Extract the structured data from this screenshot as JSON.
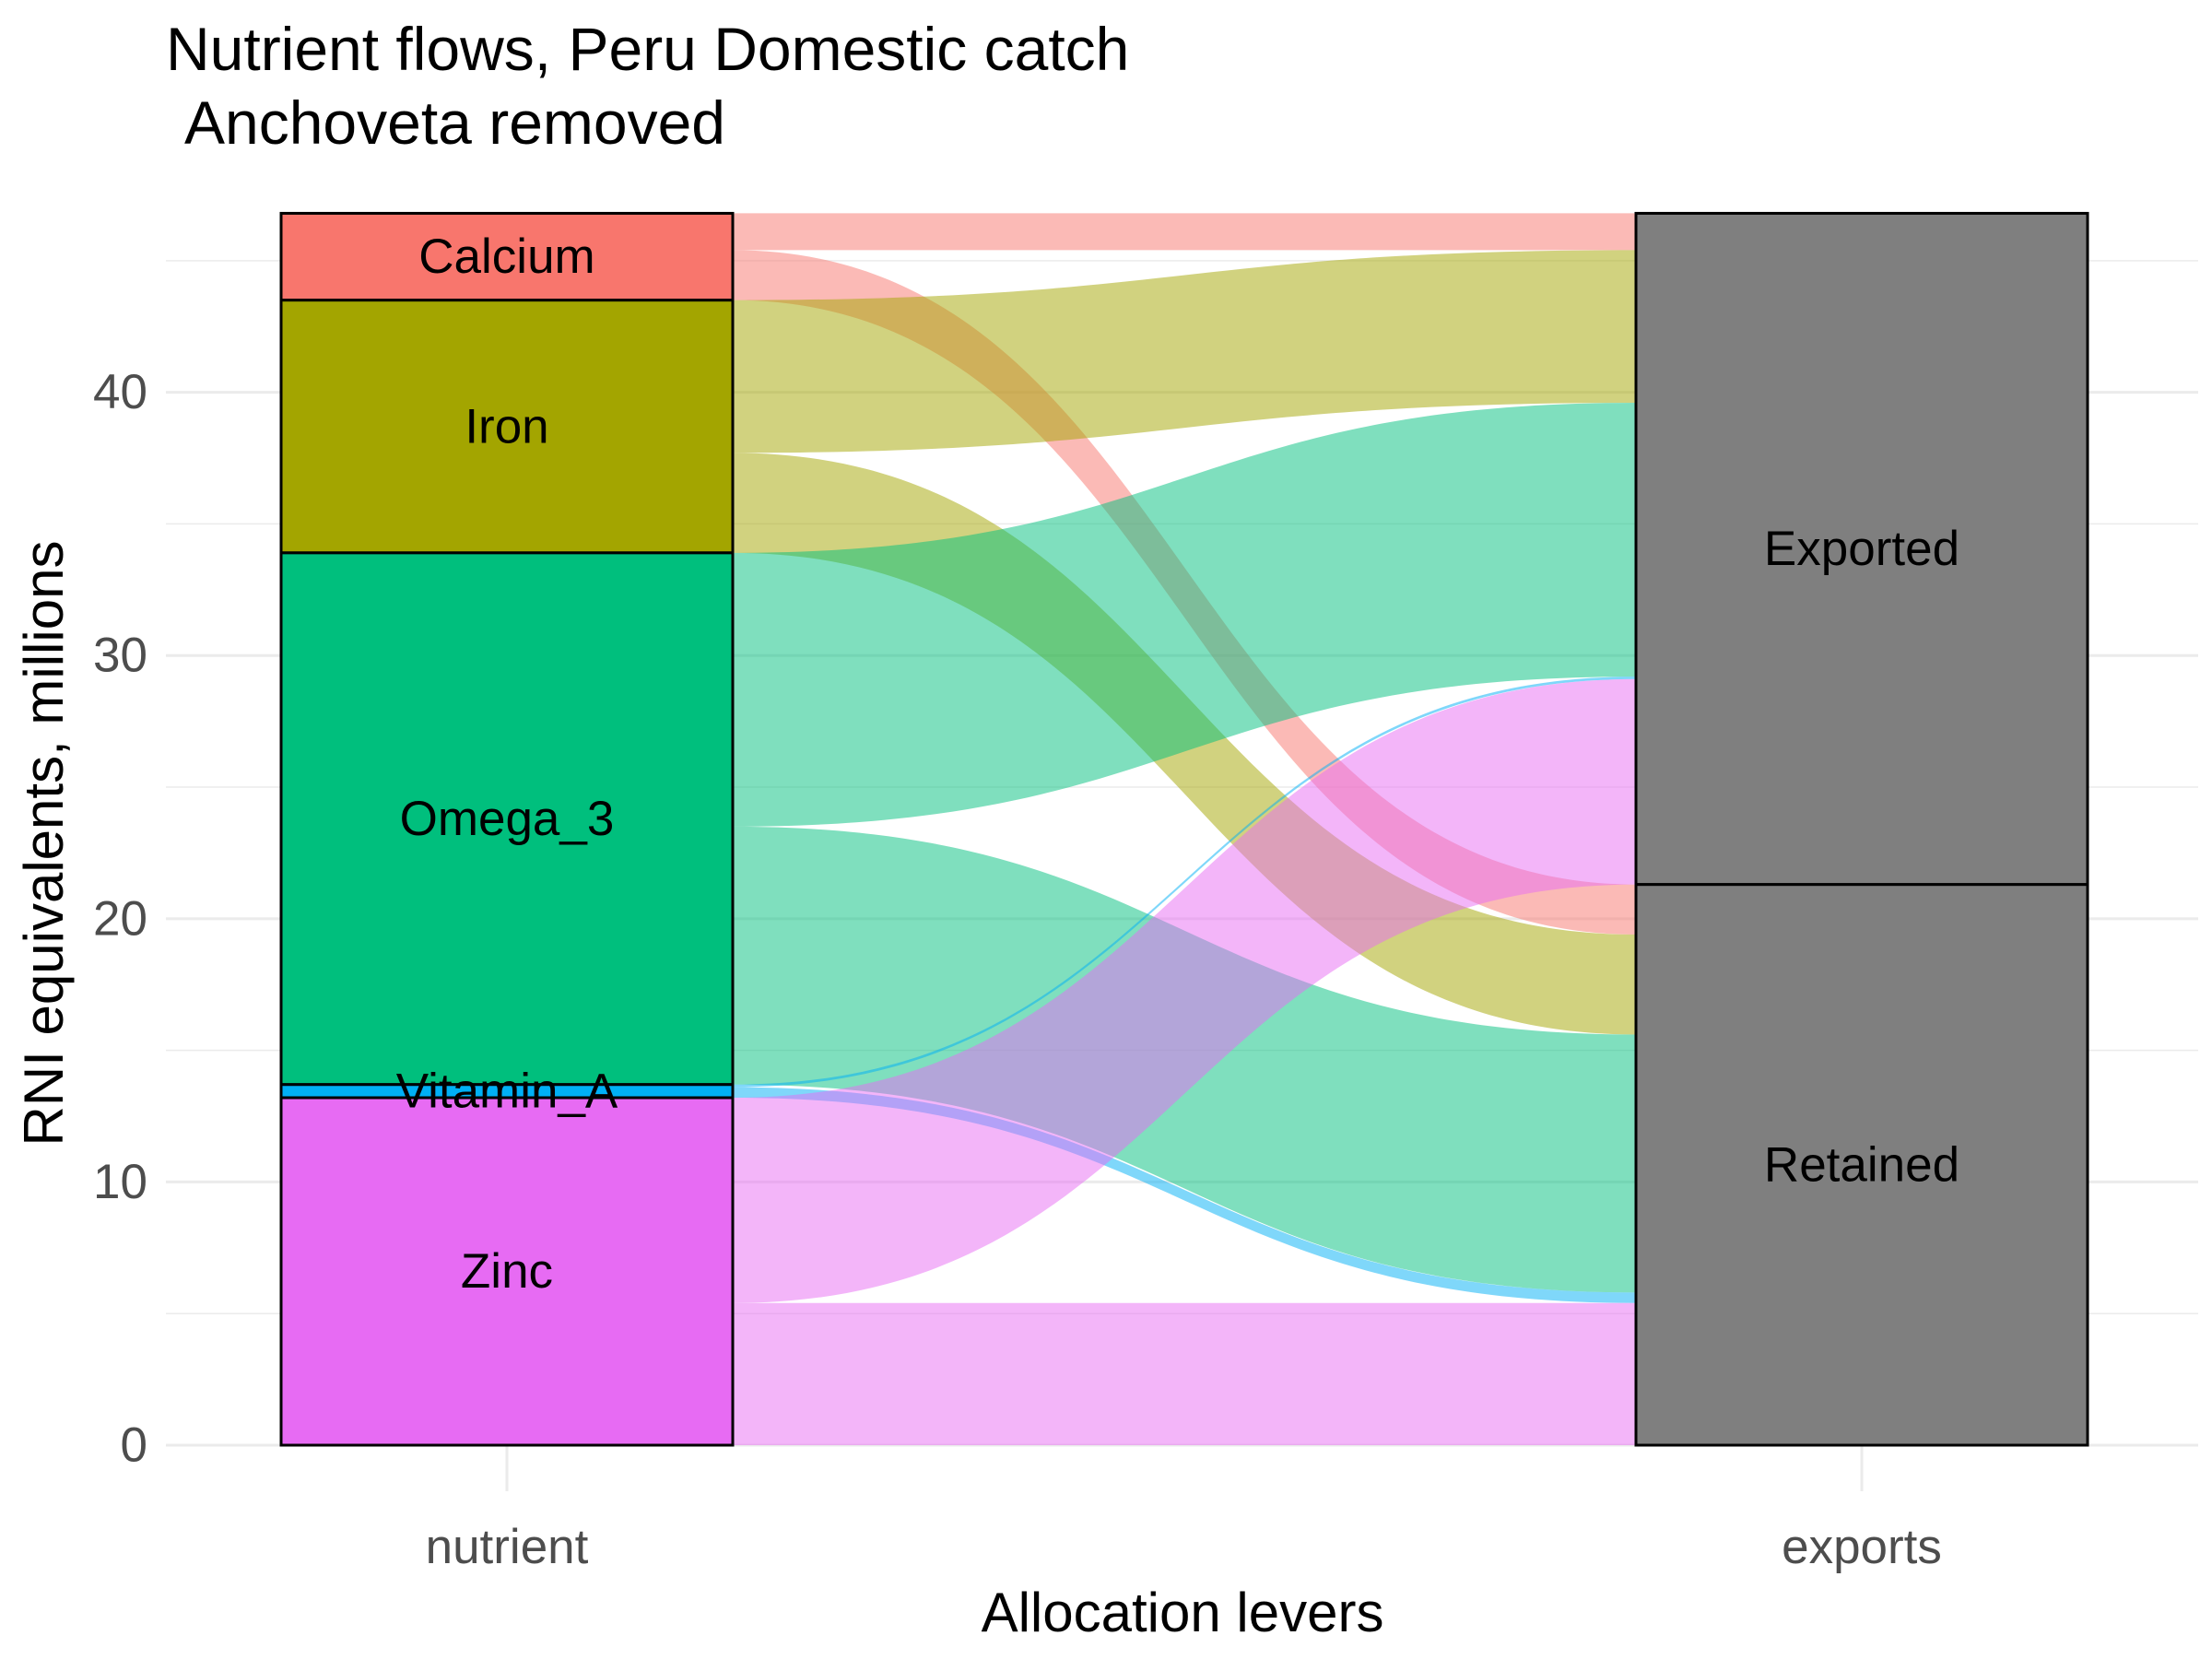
{
  "chart_data": {
    "type": "alluvial",
    "title": "Nutrient flows, Peru Domestic catch",
    "subtitle": "Anchoveta removed",
    "xlabel": "Allocation levers",
    "ylabel": "RNI equivalents, millions",
    "ylim": [
      0,
      46.5
    ],
    "y_ticks": [
      0,
      10,
      20,
      30,
      40
    ],
    "grid": true,
    "axes": [
      {
        "name": "nutrient",
        "categories": [
          "Calcium",
          "Iron",
          "Omega_3",
          "Vitamin_A",
          "Zinc"
        ]
      },
      {
        "name": "exports",
        "categories": [
          "Exported",
          "Retained"
        ]
      }
    ],
    "flows": [
      {
        "nutrient": "Calcium",
        "exports": "Exported",
        "value": 1.4
      },
      {
        "nutrient": "Calcium",
        "exports": "Retained",
        "value": 1.9
      },
      {
        "nutrient": "Iron",
        "exports": "Exported",
        "value": 5.8
      },
      {
        "nutrient": "Iron",
        "exports": "Retained",
        "value": 3.8
      },
      {
        "nutrient": "Omega_3",
        "exports": "Exported",
        "value": 10.4
      },
      {
        "nutrient": "Omega_3",
        "exports": "Retained",
        "value": 9.8
      },
      {
        "nutrient": "Vitamin_A",
        "exports": "Exported",
        "value": 0.1
      },
      {
        "nutrient": "Vitamin_A",
        "exports": "Retained",
        "value": 0.4
      },
      {
        "nutrient": "Zinc",
        "exports": "Exported",
        "value": 7.8
      },
      {
        "nutrient": "Zinc",
        "exports": "Retained",
        "value": 5.4
      }
    ],
    "colors": {
      "Calcium": "#F8766D",
      "Iron": "#A3A500",
      "Omega_3": "#00BF7D",
      "Vitamin_A": "#00B0F6",
      "Zinc": "#E76BF3",
      "exports_strata": "#7F7F7F"
    }
  }
}
